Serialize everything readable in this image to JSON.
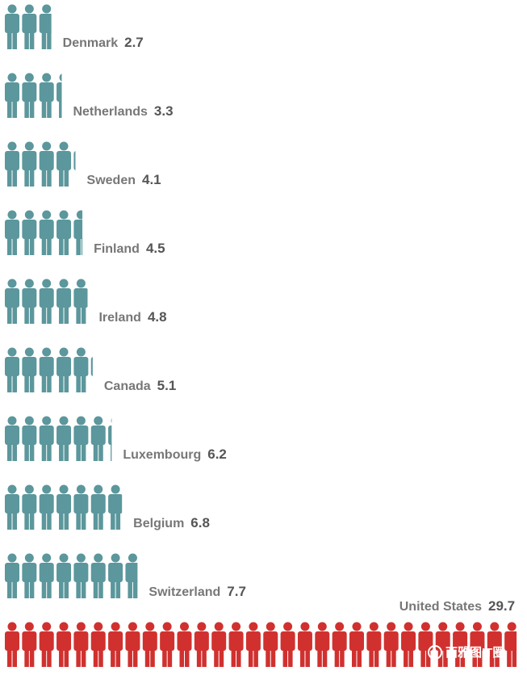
{
  "chart_data": {
    "type": "pictogram",
    "categories": [
      "Denmark",
      "Netherlands",
      "Sweden",
      "Finland",
      "Ireland",
      "Canada",
      "Luxembourg",
      "Belgium",
      "Switzerland",
      "United States"
    ],
    "values": [
      2.7,
      3.3,
      4.1,
      4.5,
      4.8,
      5.1,
      6.2,
      6.8,
      7.7,
      29.7
    ],
    "colors": [
      "#5b979c",
      "#5b979c",
      "#5b979c",
      "#5b979c",
      "#5b979c",
      "#5b979c",
      "#5b979c",
      "#5b979c",
      "#5b979c",
      "#d0312f"
    ],
    "watermark": "西雅图IT圈"
  }
}
